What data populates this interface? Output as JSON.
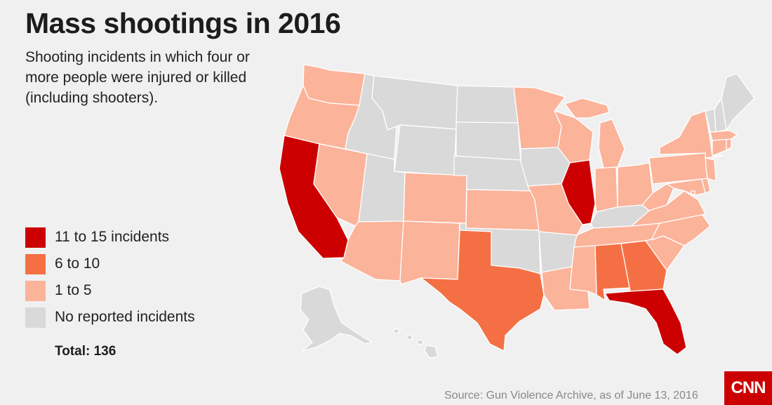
{
  "title": "Mass shootings in 2016",
  "subtitle": "Shooting incidents in which four or more people were injured or killed (including shooters).",
  "legend": [
    {
      "label": "11 to 15 incidents",
      "color": "#cc0000",
      "key": "high"
    },
    {
      "label": "6 to 10",
      "color": "#f47044",
      "key": "mid"
    },
    {
      "label": "1 to 5",
      "color": "#fbb39a",
      "key": "low"
    },
    {
      "label": "No reported incidents",
      "color": "#d9d9d9",
      "key": "none"
    }
  ],
  "total": "Total: 136",
  "source": "Source: Gun Violence Archive, as of June 13, 2016",
  "logo_text": "CNN",
  "background_color": "#f0f0f0",
  "map_data": {
    "type": "choropleth",
    "region": "United States",
    "states": {
      "WA": "low",
      "OR": "low",
      "CA": "high",
      "NV": "low",
      "ID": "none",
      "MT": "none",
      "WY": "none",
      "UT": "none",
      "AZ": "low",
      "CO": "low",
      "NM": "low",
      "ND": "none",
      "SD": "none",
      "NE": "none",
      "KS": "low",
      "OK": "none",
      "TX": "mid",
      "MN": "low",
      "IA": "none",
      "MO": "low",
      "AR": "none",
      "LA": "low",
      "WI": "low",
      "IL": "high",
      "MI": "low",
      "IN": "low",
      "OH": "low",
      "KY": "none",
      "TN": "low",
      "MS": "low",
      "AL": "mid",
      "GA": "mid",
      "FL": "high",
      "SC": "low",
      "NC": "low",
      "VA": "low",
      "WV": "low",
      "MD": "low",
      "DE": "low",
      "NJ": "low",
      "PA": "low",
      "NY": "low",
      "CT": "low",
      "RI": "low",
      "MA": "low",
      "VT": "none",
      "NH": "none",
      "ME": "none",
      "AK": "none",
      "HI": "none",
      "DC": "low"
    }
  }
}
